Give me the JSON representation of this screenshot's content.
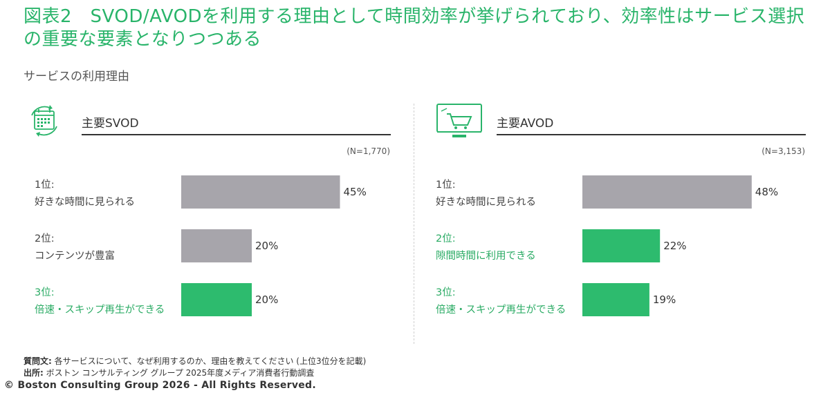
{
  "title": "図表2　SVOD/AVODを利用する理由として時間効率が挙げられており、効率性はサービス選択の重要な要素となりつつある",
  "subtitle": "サービスの利用理由",
  "colors": {
    "accent": "#29b46a",
    "gray_bar": "#a7a5ab",
    "green_bar": "#2dbb6e",
    "highlight_text": "#2aab64",
    "default_text": "#444444"
  },
  "panels": [
    {
      "title": "主要SVOD",
      "icon": "calendar-icon",
      "n_label": "(N=1,770)"
    },
    {
      "title": "主要AVOD",
      "icon": "shopping-cart-monitor-icon",
      "n_label": "(N=3,153)"
    }
  ],
  "chart_data": [
    {
      "type": "bar",
      "orientation": "horizontal",
      "title": "主要SVOD",
      "n": "(N=1,770)",
      "categories": [
        "1位:\n好きな時間に見られる",
        "2位:\nコンテンツが豊富",
        "3位:\n倍速・スキップ再生ができる"
      ],
      "rank_labels": [
        "1位:",
        "2位:",
        "3位:"
      ],
      "reason_labels": [
        "好きな時間に見られる",
        "コンテンツが豊富",
        "倍速・スキップ再生ができる"
      ],
      "values": [
        45,
        20,
        20
      ],
      "value_labels": [
        "45%",
        "20%",
        "20%"
      ],
      "highlight": [
        false,
        false,
        true
      ],
      "xlim": [
        0,
        100
      ]
    },
    {
      "type": "bar",
      "orientation": "horizontal",
      "title": "主要AVOD",
      "n": "(N=3,153)",
      "categories": [
        "1位:\n好きな時間に見られる",
        "2位:\n隙間時間に利用できる",
        "3位:\n倍速・スキップ再生ができる"
      ],
      "rank_labels": [
        "1位:",
        "2位:",
        "3位:"
      ],
      "reason_labels": [
        "好きな時間に見られる",
        "隙間時間に利用できる",
        "倍速・スキップ再生ができる"
      ],
      "values": [
        48,
        22,
        19
      ],
      "value_labels": [
        "48%",
        "22%",
        "19%"
      ],
      "highlight": [
        false,
        true,
        true
      ],
      "xlim": [
        0,
        100
      ]
    }
  ],
  "footer": {
    "question_label": "質問文:",
    "question_text": " 各サービスについて、なぜ利用するのか、理由を教えてください (上位3位分を記載)",
    "source_label": "出所:",
    "source_text": " ボストン コンサルティング グループ 2025年度メディア消費者行動調査",
    "copyright": "© Boston Consulting Group 2026 - All Rights Reserved."
  }
}
